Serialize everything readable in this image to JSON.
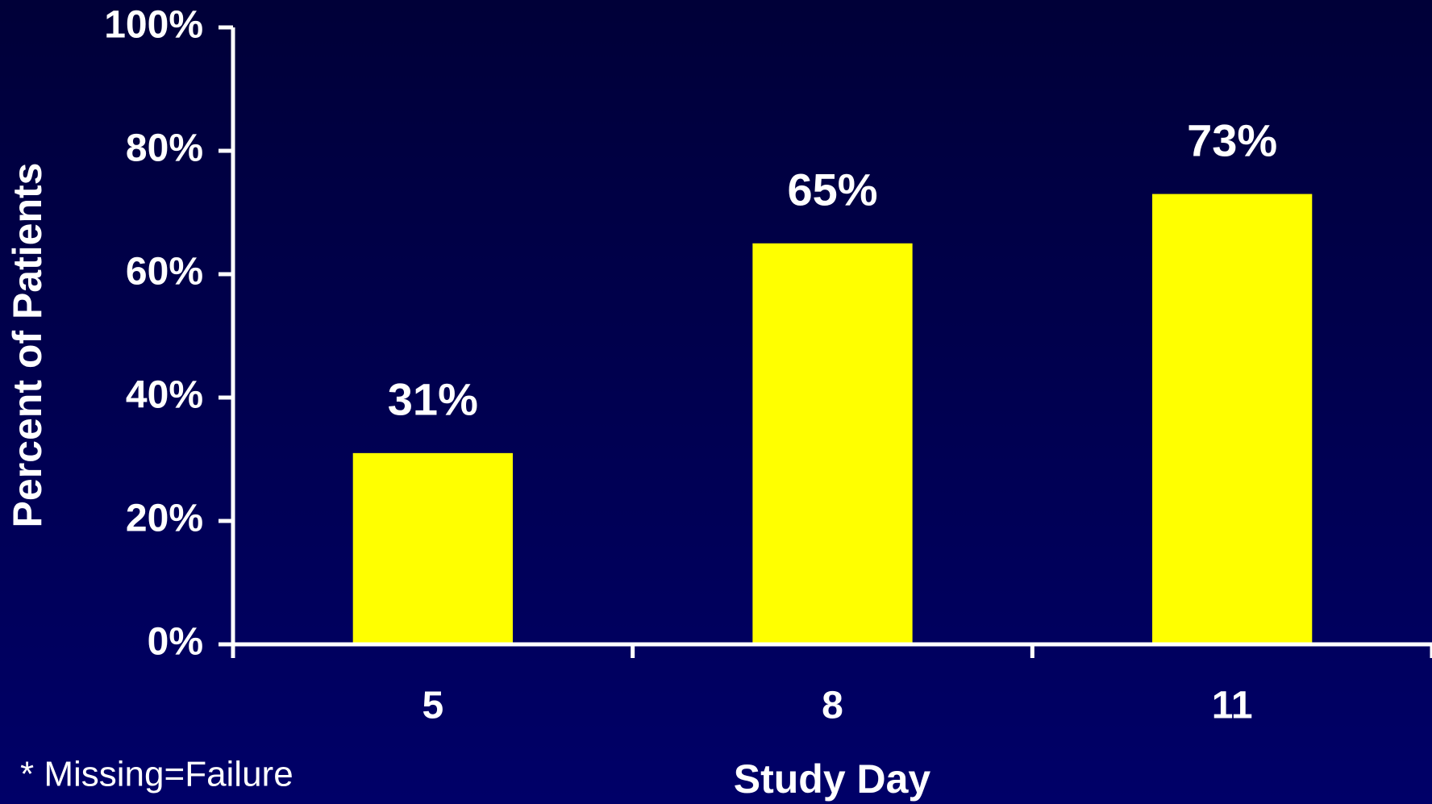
{
  "chart_data": {
    "type": "bar",
    "x_label": "Study Day",
    "y_label": "Percent of Patients",
    "footnote": "* Missing=Failure",
    "categories": [
      "5",
      "8",
      "11"
    ],
    "values": [
      31,
      65,
      73
    ],
    "value_labels": [
      "31%",
      "65%",
      "73%"
    ],
    "color": "#ffff00",
    "ylim": [
      0,
      100
    ],
    "yticks": [
      {
        "value": 0,
        "label": "0%"
      },
      {
        "value": 20,
        "label": "20%"
      },
      {
        "value": 40,
        "label": "40%"
      },
      {
        "value": 60,
        "label": "60%"
      },
      {
        "value": 80,
        "label": "80%"
      },
      {
        "value": 100,
        "label": "100%"
      }
    ],
    "grid": false
  }
}
